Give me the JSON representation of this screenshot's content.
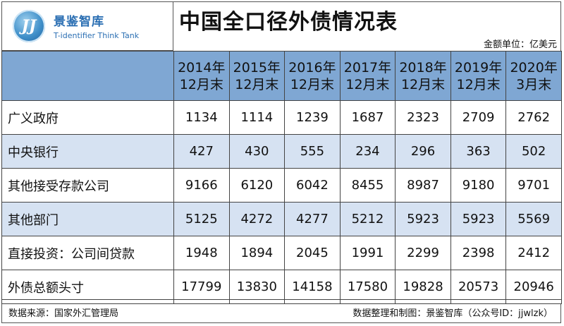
{
  "logo": {
    "mark": "JJ",
    "name_cn": "景鉴智库",
    "name_en": "T-identifier Think Tank"
  },
  "title": "中国全口径外债情况表",
  "unit": "金额单位：亿美元",
  "table": {
    "columns": [
      {
        "line1": "2014年",
        "line2": "12月末"
      },
      {
        "line1": "2015年",
        "line2": "12月末"
      },
      {
        "line1": "2016年",
        "line2": "12月末"
      },
      {
        "line1": "2017年",
        "line2": "12月末"
      },
      {
        "line1": "2018年",
        "line2": "12月末"
      },
      {
        "line1": "2019年",
        "line2": "12月末"
      },
      {
        "line1": "2020年",
        "line2": "3月末"
      }
    ],
    "rows": [
      {
        "label": "广义政府",
        "values": [
          "1134",
          "1114",
          "1239",
          "1687",
          "2323",
          "2709",
          "2762"
        ]
      },
      {
        "label": "中央银行",
        "values": [
          "427",
          "430",
          "555",
          "234",
          "296",
          "363",
          "502"
        ]
      },
      {
        "label": "其他接受存款公司",
        "values": [
          "9166",
          "6120",
          "6042",
          "8455",
          "8987",
          "9180",
          "9701"
        ]
      },
      {
        "label": "其他部门",
        "values": [
          "5125",
          "4272",
          "4277",
          "5212",
          "5923",
          "5923",
          "5569"
        ]
      },
      {
        "label": "直接投资：公司间贷款",
        "values": [
          "1948",
          "1894",
          "2045",
          "1991",
          "2299",
          "2398",
          "2412"
        ]
      },
      {
        "label": "外债总额头寸",
        "values": [
          "17799",
          "13830",
          "14158",
          "17580",
          "19828",
          "20573",
          "20946"
        ]
      }
    ]
  },
  "footer": {
    "source": "数据来源：国家外汇管理局",
    "credit": "数据整理和制图：景鉴智库（公众号ID：jjwlzk）"
  },
  "colors": {
    "header_bg": "#7fa7d3",
    "alt_row_bg": "#d6e2f2",
    "brand_blue": "#2b6fb3"
  }
}
